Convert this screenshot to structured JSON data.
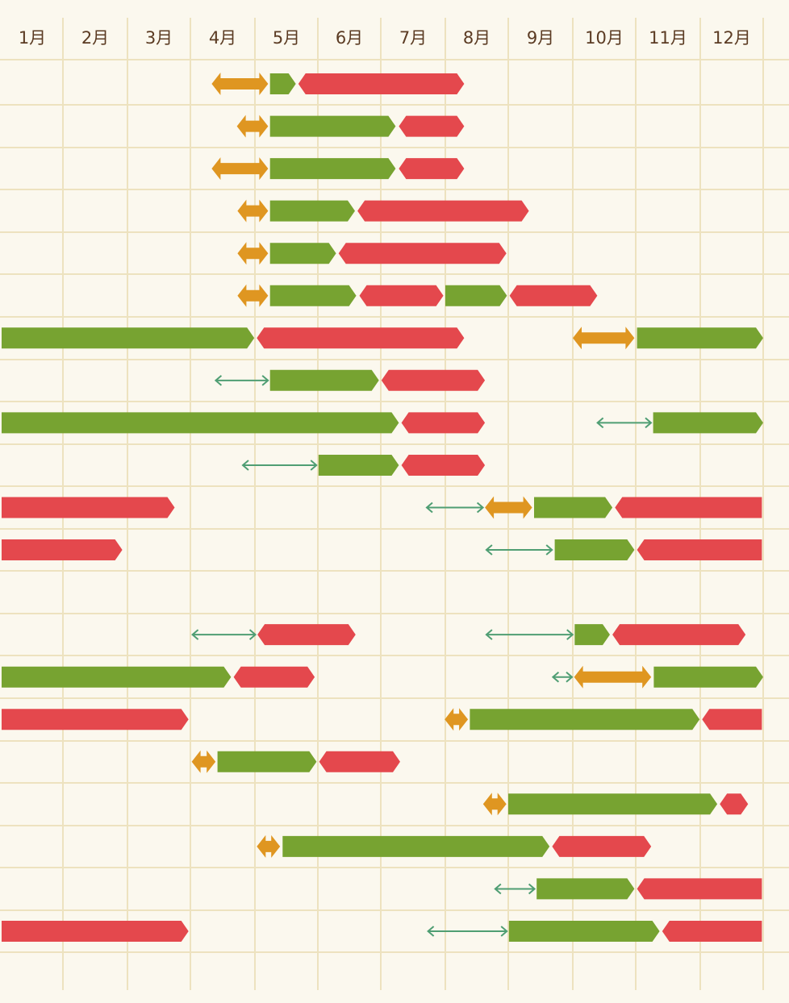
{
  "chart_data": {
    "type": "gantt",
    "x_unit": "month",
    "x_range": [
      1,
      13
    ],
    "months": [
      "1月",
      "2月",
      "3月",
      "4月",
      "5月",
      "6月",
      "7月",
      "8月",
      "9月",
      "10月",
      "11月",
      "12月"
    ],
    "row_count": 21,
    "colors": {
      "background": "#fbf8ee",
      "grid": "#ede2bf",
      "month_text": "#5b3b23",
      "orange": "#df9621",
      "green": "#77a331",
      "red": "#e4484d",
      "arrow_line": "#4f9e73"
    },
    "rows": [
      [
        {
          "kind": "orange",
          "start": 4.33,
          "end": 5.21
        },
        {
          "kind": "green",
          "start": 5.24,
          "end": 5.65
        },
        {
          "kind": "red",
          "start": 5.69,
          "end": 8.3
        }
      ],
      [
        {
          "kind": "orange",
          "start": 4.72,
          "end": 5.21
        },
        {
          "kind": "green",
          "start": 5.24,
          "end": 7.23
        },
        {
          "kind": "red",
          "start": 7.28,
          "end": 8.3
        }
      ],
      [
        {
          "kind": "orange",
          "start": 4.33,
          "end": 5.21
        },
        {
          "kind": "green",
          "start": 5.24,
          "end": 7.23
        },
        {
          "kind": "red",
          "start": 7.28,
          "end": 8.3
        }
      ],
      [
        {
          "kind": "orange",
          "start": 4.73,
          "end": 5.21
        },
        {
          "kind": "green",
          "start": 5.24,
          "end": 6.59
        },
        {
          "kind": "red",
          "start": 6.63,
          "end": 9.32
        }
      ],
      [
        {
          "kind": "orange",
          "start": 4.73,
          "end": 5.21
        },
        {
          "kind": "green",
          "start": 5.24,
          "end": 6.29
        },
        {
          "kind": "red",
          "start": 6.33,
          "end": 8.97
        }
      ],
      [
        {
          "kind": "orange",
          "start": 4.73,
          "end": 5.21
        },
        {
          "kind": "green",
          "start": 5.24,
          "end": 6.61
        },
        {
          "kind": "red",
          "start": 6.66,
          "end": 7.97
        },
        {
          "kind": "green",
          "start": 8.0,
          "end": 8.98
        },
        {
          "kind": "red",
          "start": 9.02,
          "end": 10.39
        }
      ],
      [
        {
          "kind": "green",
          "start": 1.0,
          "end": 4.99
        },
        {
          "kind": "red",
          "start": 5.03,
          "end": 8.3
        },
        {
          "kind": "orange",
          "start": 10.0,
          "end": 10.98
        },
        {
          "kind": "green",
          "start": 11.02,
          "end": 13.0
        }
      ],
      [
        {
          "kind": "thin",
          "start": 4.38,
          "end": 5.22
        },
        {
          "kind": "green",
          "start": 5.24,
          "end": 6.97
        },
        {
          "kind": "red",
          "start": 7.01,
          "end": 8.63
        }
      ],
      [
        {
          "kind": "green",
          "start": 1.0,
          "end": 7.28
        },
        {
          "kind": "red",
          "start": 7.32,
          "end": 8.63
        },
        {
          "kind": "thin",
          "start": 10.38,
          "end": 11.25
        },
        {
          "kind": "green",
          "start": 11.27,
          "end": 13.0
        }
      ],
      [
        {
          "kind": "thin",
          "start": 4.8,
          "end": 5.99
        },
        {
          "kind": "green",
          "start": 6.01,
          "end": 7.28
        },
        {
          "kind": "red",
          "start": 7.32,
          "end": 8.63
        }
      ],
      [
        {
          "kind": "red",
          "start": 1.0,
          "end": 3.75
        },
        {
          "kind": "thin",
          "start": 7.7,
          "end": 8.61
        },
        {
          "kind": "orange",
          "start": 8.63,
          "end": 9.37
        },
        {
          "kind": "green",
          "start": 9.4,
          "end": 10.63
        },
        {
          "kind": "red",
          "start": 10.67,
          "end": 12.98
        }
      ],
      [
        {
          "kind": "red",
          "start": 1.0,
          "end": 2.92
        },
        {
          "kind": "thin",
          "start": 8.64,
          "end": 9.69
        },
        {
          "kind": "green",
          "start": 9.72,
          "end": 10.98
        },
        {
          "kind": "red",
          "start": 11.02,
          "end": 12.98
        }
      ],
      [],
      [
        {
          "kind": "thin",
          "start": 4.02,
          "end": 5.02
        },
        {
          "kind": "red",
          "start": 5.04,
          "end": 6.6
        },
        {
          "kind": "thin",
          "start": 8.64,
          "end": 10.01
        },
        {
          "kind": "green",
          "start": 10.03,
          "end": 10.59
        },
        {
          "kind": "red",
          "start": 10.63,
          "end": 12.72
        }
      ],
      [
        {
          "kind": "green",
          "start": 1.0,
          "end": 4.63
        },
        {
          "kind": "red",
          "start": 4.67,
          "end": 5.95
        },
        {
          "kind": "thin",
          "start": 9.68,
          "end": 10.0
        },
        {
          "kind": "orange",
          "start": 10.02,
          "end": 11.24
        },
        {
          "kind": "green",
          "start": 11.28,
          "end": 13.0
        }
      ],
      [
        {
          "kind": "red",
          "start": 1.0,
          "end": 3.97
        },
        {
          "kind": "orange",
          "start": 7.99,
          "end": 8.36
        },
        {
          "kind": "green",
          "start": 8.39,
          "end": 11.99
        },
        {
          "kind": "red",
          "start": 12.03,
          "end": 12.98
        }
      ],
      [
        {
          "kind": "orange",
          "start": 4.02,
          "end": 4.39
        },
        {
          "kind": "green",
          "start": 4.42,
          "end": 5.98
        },
        {
          "kind": "red",
          "start": 6.02,
          "end": 7.3
        }
      ],
      [
        {
          "kind": "orange",
          "start": 8.6,
          "end": 8.97
        },
        {
          "kind": "green",
          "start": 9.0,
          "end": 12.27
        },
        {
          "kind": "red",
          "start": 12.31,
          "end": 12.76
        }
      ],
      [
        {
          "kind": "orange",
          "start": 5.03,
          "end": 5.4
        },
        {
          "kind": "green",
          "start": 5.44,
          "end": 9.64
        },
        {
          "kind": "red",
          "start": 9.68,
          "end": 11.24
        }
      ],
      [
        {
          "kind": "thin",
          "start": 8.78,
          "end": 9.42
        },
        {
          "kind": "green",
          "start": 9.44,
          "end": 10.98
        },
        {
          "kind": "red",
          "start": 11.02,
          "end": 12.98
        }
      ],
      [
        {
          "kind": "red",
          "start": 1.0,
          "end": 3.97
        },
        {
          "kind": "thin",
          "start": 7.72,
          "end": 8.99
        },
        {
          "kind": "green",
          "start": 9.01,
          "end": 11.37
        },
        {
          "kind": "red",
          "start": 11.41,
          "end": 12.98
        }
      ]
    ]
  }
}
